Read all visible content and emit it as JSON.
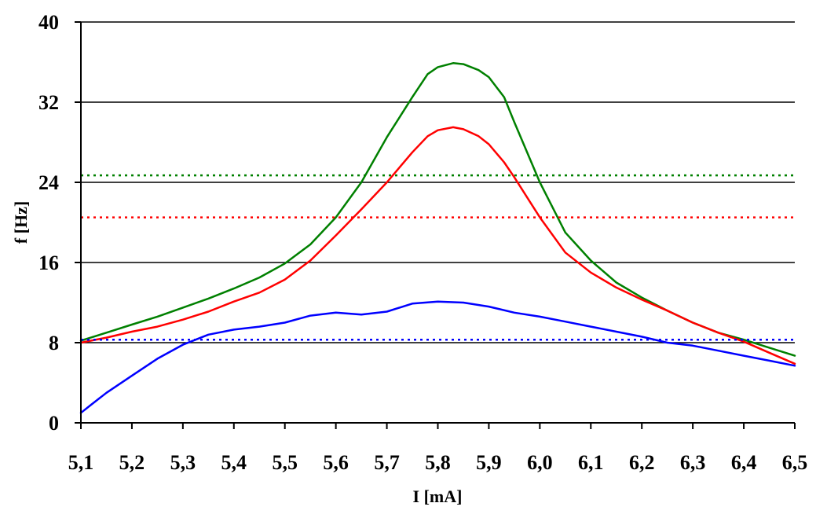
{
  "chart_data": {
    "type": "line",
    "xlabel": "I [mA]",
    "ylabel": "f [Hz]",
    "xlim": [
      5.1,
      6.5
    ],
    "ylim": [
      0,
      40
    ],
    "x_ticks": [
      "5,1",
      "5,2",
      "5,3",
      "5,4",
      "5,5",
      "5,6",
      "5,7",
      "5,8",
      "5,9",
      "6,0",
      "6,1",
      "6,2",
      "6,3",
      "6,4",
      "6,5"
    ],
    "y_ticks": [
      "0",
      "8",
      "16",
      "24",
      "32",
      "40"
    ],
    "y_tick_values": [
      0,
      8,
      16,
      24,
      32,
      40
    ],
    "grid": "horizontal",
    "legend": "none",
    "series": [
      {
        "color": "#008000",
        "style": "solid",
        "x": [
          5.1,
          5.15,
          5.2,
          5.25,
          5.3,
          5.35,
          5.4,
          5.45,
          5.5,
          5.55,
          5.6,
          5.65,
          5.7,
          5.75,
          5.78,
          5.8,
          5.83,
          5.85,
          5.88,
          5.9,
          5.93,
          5.95,
          6.0,
          6.05,
          6.1,
          6.15,
          6.2,
          6.25,
          6.3,
          6.35,
          6.4,
          6.45,
          6.5
        ],
        "y": [
          8.2,
          9.0,
          9.8,
          10.6,
          11.5,
          12.4,
          13.4,
          14.5,
          15.9,
          17.8,
          20.5,
          24.0,
          28.5,
          32.5,
          34.8,
          35.5,
          35.9,
          35.8,
          35.2,
          34.5,
          32.5,
          30.0,
          24.0,
          19.0,
          16.2,
          14.0,
          12.5,
          11.2,
          10.0,
          9.0,
          8.3,
          7.5,
          6.7
        ]
      },
      {
        "color": "#ff0000",
        "style": "solid",
        "x": [
          5.1,
          5.15,
          5.2,
          5.25,
          5.3,
          5.35,
          5.4,
          5.45,
          5.5,
          5.55,
          5.6,
          5.65,
          5.7,
          5.75,
          5.78,
          5.8,
          5.83,
          5.85,
          5.88,
          5.9,
          5.93,
          5.95,
          6.0,
          6.05,
          6.1,
          6.15,
          6.2,
          6.25,
          6.3,
          6.35,
          6.4,
          6.45,
          6.5
        ],
        "y": [
          8.0,
          8.5,
          9.1,
          9.6,
          10.3,
          11.1,
          12.1,
          13.0,
          14.3,
          16.2,
          18.7,
          21.3,
          24.0,
          27.0,
          28.6,
          29.2,
          29.5,
          29.3,
          28.6,
          27.8,
          26.0,
          24.5,
          20.5,
          17.0,
          15.0,
          13.5,
          12.3,
          11.2,
          10.0,
          9.0,
          8.1,
          7.0,
          5.9
        ]
      },
      {
        "color": "#0000ff",
        "style": "solid",
        "x": [
          5.1,
          5.12,
          5.15,
          5.2,
          5.25,
          5.3,
          5.35,
          5.4,
          5.45,
          5.5,
          5.55,
          5.6,
          5.65,
          5.7,
          5.75,
          5.8,
          5.85,
          5.9,
          5.95,
          6.0,
          6.05,
          6.1,
          6.15,
          6.2,
          6.25,
          6.3,
          6.35,
          6.4,
          6.45,
          6.5
        ],
        "y": [
          1.0,
          1.8,
          3.0,
          4.7,
          6.4,
          7.8,
          8.8,
          9.3,
          9.6,
          10.0,
          10.7,
          11.0,
          10.8,
          11.1,
          11.9,
          12.1,
          12.0,
          11.6,
          11.0,
          10.6,
          10.1,
          9.6,
          9.1,
          8.6,
          8.0,
          7.7,
          7.2,
          6.7,
          6.2,
          5.7
        ]
      },
      {
        "color": "#008000",
        "style": "dotted",
        "x": [
          5.1,
          6.5
        ],
        "y": [
          24.7,
          24.7
        ]
      },
      {
        "color": "#ff0000",
        "style": "dotted",
        "x": [
          5.1,
          6.5
        ],
        "y": [
          20.5,
          20.5
        ]
      },
      {
        "color": "#0000ff",
        "style": "dotted",
        "x": [
          5.1,
          6.5
        ],
        "y": [
          8.3,
          8.3
        ]
      }
    ]
  }
}
